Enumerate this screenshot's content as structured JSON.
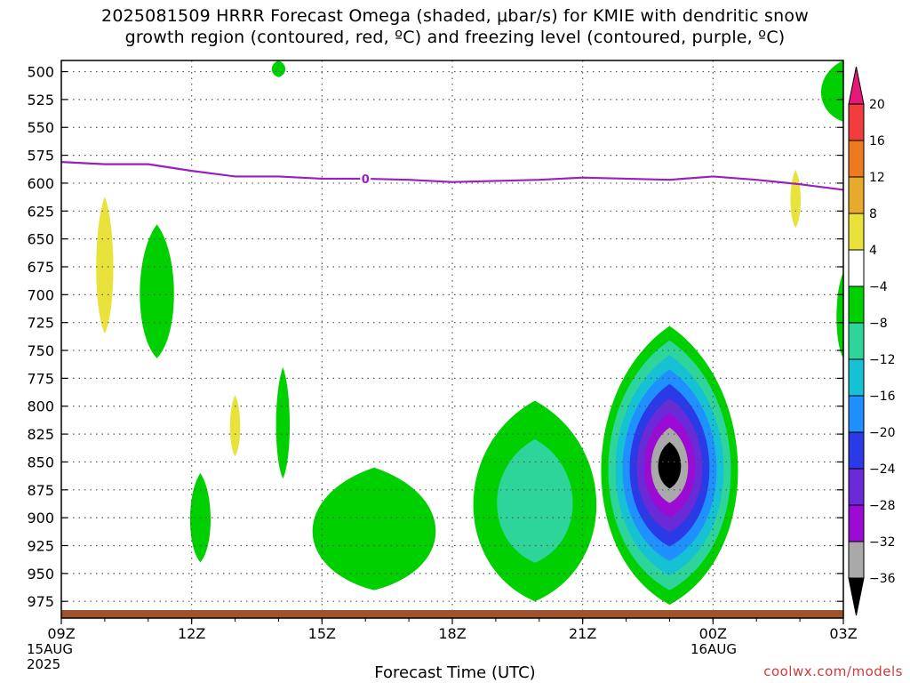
{
  "header": {
    "title_line1": "2025081509 HRRR Forecast Omega (shaded, μbar/s) for KMIE with dendritic snow",
    "title_line2": "growth region (contoured, red, ºC) and freezing level (contoured, purple, ºC)"
  },
  "footer": {
    "xlabel": "Forecast Time (UTC)",
    "watermark": "coolwx.com/models",
    "start_date_line1": "15AUG",
    "start_date_line2": "2025",
    "next_date_line1": "16AUG"
  },
  "colors": {
    "freezing_level": "#9a1fc0",
    "ground": "#a0522d",
    "gridline": "#555555"
  },
  "chart_data": {
    "type": "heatmap",
    "title": "2025081509 HRRR Forecast Omega (shaded, μbar/s) for KMIE with dendritic snow growth region (contoured, red, ºC) and freezing level (contoured, purple, ºC)",
    "xlabel": "Forecast Time (UTC)",
    "ylabel": "",
    "x_range_hours": [
      0,
      18
    ],
    "x_ticks": [
      {
        "hour": 0,
        "label": "09Z"
      },
      {
        "hour": 3,
        "label": "12Z"
      },
      {
        "hour": 6,
        "label": "15Z"
      },
      {
        "hour": 9,
        "label": "18Z"
      },
      {
        "hour": 12,
        "label": "21Z"
      },
      {
        "hour": 15,
        "label": "00Z"
      },
      {
        "hour": 18,
        "label": "03Z"
      }
    ],
    "y_range_hpa": [
      490,
      990
    ],
    "y_ticks": [
      500,
      525,
      550,
      575,
      600,
      625,
      650,
      675,
      700,
      725,
      750,
      775,
      800,
      825,
      850,
      875,
      900,
      925,
      950,
      975
    ],
    "grid": true,
    "colorbar": {
      "levels": [
        -36,
        -32,
        -28,
        -24,
        -20,
        -16,
        -12,
        -8,
        -4,
        4,
        8,
        12,
        16,
        20
      ],
      "colors": [
        "#000000",
        "#a9a9a9",
        "#9b0bd3",
        "#6a2ad8",
        "#2a3ae6",
        "#1e90ff",
        "#17c1d4",
        "#2ed59a",
        "#00d000",
        "#ffffff",
        "#e8e23a",
        "#e6aa2c",
        "#ee7a1e",
        "#f03c3c",
        "#e6197a"
      ]
    },
    "freezing_level_0C": {
      "label": "0",
      "hours": [
        0,
        1,
        2,
        3,
        4,
        5,
        6,
        7,
        8,
        9,
        10,
        11,
        12,
        13,
        14,
        15,
        16,
        17,
        18
      ],
      "pressure_hpa": [
        581,
        583,
        583,
        589,
        594,
        594,
        596,
        596,
        597,
        599,
        598,
        597,
        595,
        596,
        597,
        594,
        597,
        601,
        606
      ]
    },
    "features": [
      {
        "hour": 1.0,
        "top": 612,
        "bottom": 735,
        "halfwidth": 0.25,
        "level": 4
      },
      {
        "hour": 2.2,
        "top": 637,
        "bottom": 757,
        "halfwidth": 0.5,
        "level": -4
      },
      {
        "hour": 3.2,
        "top": 860,
        "bottom": 940,
        "halfwidth": 0.3,
        "level": -4
      },
      {
        "hour": 4.0,
        "top": 790,
        "bottom": 845,
        "halfwidth": 0.15,
        "level": 4
      },
      {
        "hour": 5.0,
        "top": 490,
        "bottom": 505,
        "halfwidth": 0.2,
        "level": -4
      },
      {
        "hour": 5.1,
        "top": 765,
        "bottom": 865,
        "halfwidth": 0.2,
        "level": -4
      },
      {
        "hour": 7.2,
        "top": 855,
        "bottom": 965,
        "halfwidth": 1.8,
        "level": -4
      },
      {
        "hour": 10.9,
        "top": 795,
        "bottom": 975,
        "halfwidth": 1.8,
        "level": -8
      },
      {
        "hour": 14.0,
        "top": 728,
        "bottom": 978,
        "halfwidth": 2.0,
        "level": -36
      },
      {
        "hour": 16.9,
        "top": 588,
        "bottom": 640,
        "halfwidth": 0.15,
        "level": 4
      },
      {
        "hour": 18.0,
        "top": 680,
        "bottom": 757,
        "halfwidth": 0.2,
        "level": -4
      },
      {
        "hour": 18.0,
        "top": 490,
        "bottom": 545,
        "halfwidth": 0.65,
        "level": -4
      }
    ]
  }
}
